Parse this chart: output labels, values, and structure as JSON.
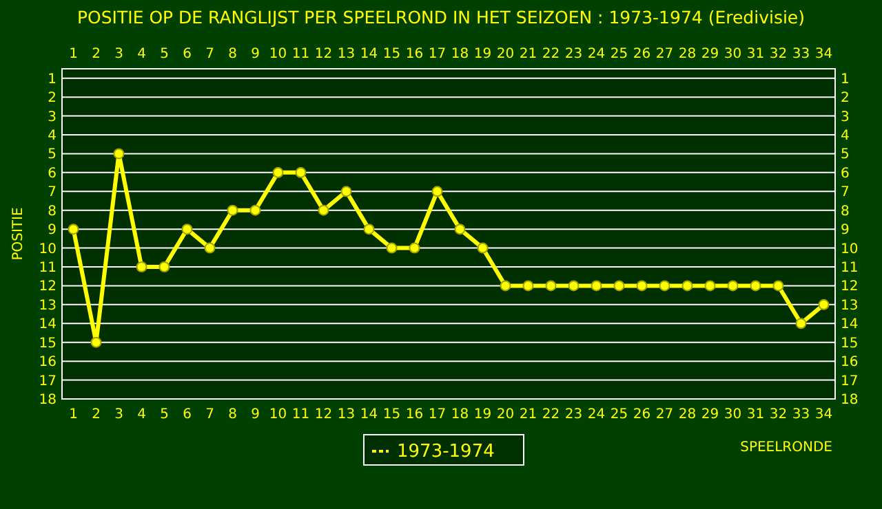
{
  "chart_data": {
    "type": "line",
    "title": "POSITIE OP DE RANGLIJST PER  SPEELROND IN HET SEIZOEN : 1973-1974 (Eredivisie)",
    "xlabel": "SPEELRONDE",
    "ylabel": "POSITIE",
    "x": [
      1,
      2,
      3,
      4,
      5,
      6,
      7,
      8,
      9,
      10,
      11,
      12,
      13,
      14,
      15,
      16,
      17,
      18,
      19,
      20,
      21,
      22,
      23,
      24,
      25,
      26,
      27,
      28,
      29,
      30,
      31,
      32,
      33,
      34
    ],
    "series": [
      {
        "name": "1973-1974",
        "color": "#ffff00",
        "values": [
          9,
          15,
          5,
          11,
          11,
          9,
          10,
          8,
          8,
          6,
          6,
          8,
          7,
          9,
          10,
          10,
          7,
          9,
          10,
          12,
          12,
          12,
          12,
          12,
          12,
          12,
          12,
          12,
          12,
          12,
          12,
          12,
          14,
          13
        ]
      }
    ],
    "xlim": [
      0.5,
      34.5
    ],
    "xticks": [
      1,
      2,
      3,
      4,
      5,
      6,
      7,
      8,
      9,
      10,
      11,
      12,
      13,
      14,
      15,
      16,
      17,
      18,
      19,
      20,
      21,
      22,
      23,
      24,
      25,
      26,
      27,
      28,
      29,
      30,
      31,
      32,
      33,
      34
    ],
    "x2lim": [
      0.5,
      34.5
    ],
    "x2ticks": [
      1,
      2,
      3,
      4,
      5,
      6,
      7,
      8,
      9,
      10,
      11,
      12,
      13,
      14,
      15,
      16,
      17,
      18,
      19,
      20,
      21,
      22,
      23,
      24,
      25,
      26,
      27,
      28,
      29,
      30,
      31,
      32,
      33,
      34
    ],
    "ylim": [
      18,
      0.5
    ],
    "yticks": [
      1,
      2,
      3,
      4,
      5,
      6,
      7,
      8,
      9,
      10,
      11,
      12,
      13,
      14,
      15,
      16,
      17,
      18
    ],
    "y2lim": [
      18,
      0.5
    ],
    "y2ticks": [
      1,
      2,
      3,
      4,
      5,
      6,
      7,
      8,
      9,
      10,
      11,
      12,
      13,
      14,
      15,
      16,
      17,
      18
    ],
    "grid": "y",
    "legend": "bottom",
    "marker": "circle",
    "line_style": "solid"
  }
}
